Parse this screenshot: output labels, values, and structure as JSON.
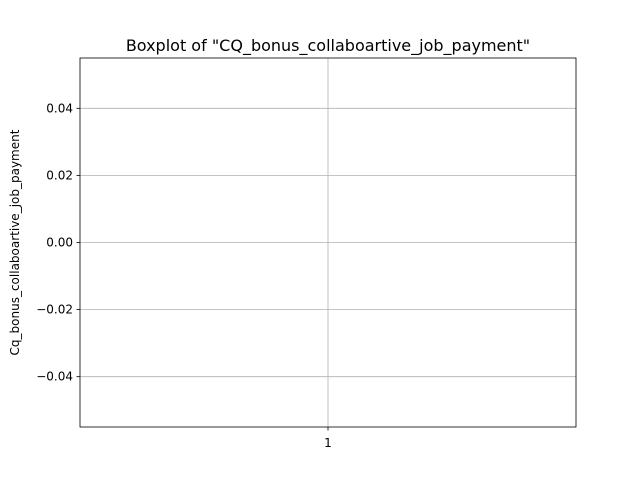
{
  "chart_data": {
    "type": "box",
    "title": "Boxplot of \"CQ_bonus_collaboartive_job_payment\"",
    "xlabel": "",
    "ylabel": "Cq_bonus_collaboartive_job_payment",
    "categories": [
      "1"
    ],
    "series": [],
    "ylim": [
      -0.055,
      0.055
    ],
    "yticks": [
      0.04,
      0.02,
      0.0,
      -0.02,
      -0.04
    ],
    "ytick_labels": [
      "0.04",
      "0.02",
      "0.00",
      "−0.02",
      "−0.04"
    ],
    "xtick_labels": [
      "1"
    ],
    "grid": true,
    "colors": {
      "grid": "#b0b0b0",
      "frame": "#000000"
    }
  }
}
